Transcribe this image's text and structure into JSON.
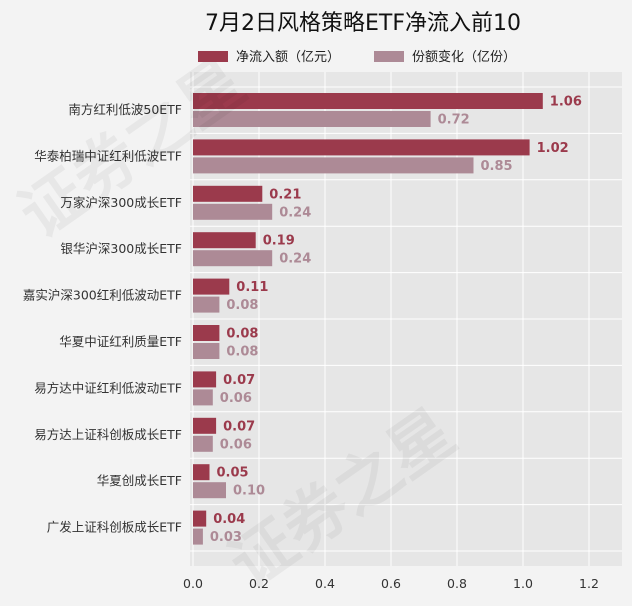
{
  "chart_data": {
    "type": "bar",
    "orientation": "horizontal",
    "title": "7月2日风格策略ETF净流入前10",
    "categories": [
      "南方红利低波50ETF",
      "华泰柏瑞中证红利低波ETF",
      "万家沪深300成长ETF",
      "银华沪深300成长ETF",
      "嘉实沪深300红利低波动ETF",
      "华夏中证红利质量ETF",
      "易方达中证红利低波动ETF",
      "易方达上证科创板成长ETF",
      "华夏创成长ETF",
      "广发上证科创板成长ETF"
    ],
    "series": [
      {
        "name": "净流入额（亿元）",
        "color": "#9b3a4c",
        "values": [
          1.06,
          1.02,
          0.21,
          0.19,
          0.11,
          0.08,
          0.07,
          0.07,
          0.05,
          0.04
        ],
        "labels": [
          "1.06",
          "1.02",
          "0.21",
          "0.19",
          "0.11",
          "0.08",
          "0.07",
          "0.07",
          "0.05",
          "0.04"
        ]
      },
      {
        "name": "份额变化（亿份）",
        "color": "#ad8a96",
        "values": [
          0.72,
          0.85,
          0.24,
          0.24,
          0.08,
          0.08,
          0.06,
          0.06,
          0.1,
          0.03
        ],
        "labels": [
          "0.72",
          "0.85",
          "0.24",
          "0.24",
          "0.08",
          "0.08",
          "0.06",
          "0.06",
          "0.10",
          "0.03"
        ]
      }
    ],
    "xlim": [
      0,
      1.3
    ],
    "xticks": [
      0,
      0.2,
      0.4,
      0.6,
      0.8,
      1.0,
      1.2
    ],
    "xtick_labels": [
      "0.0",
      "0.2",
      "0.4",
      "0.6",
      "0.8",
      "1.0",
      "1.2"
    ],
    "grid": true,
    "legend": "top-center",
    "watermark": [
      "证券之星",
      "证券之星"
    ]
  }
}
